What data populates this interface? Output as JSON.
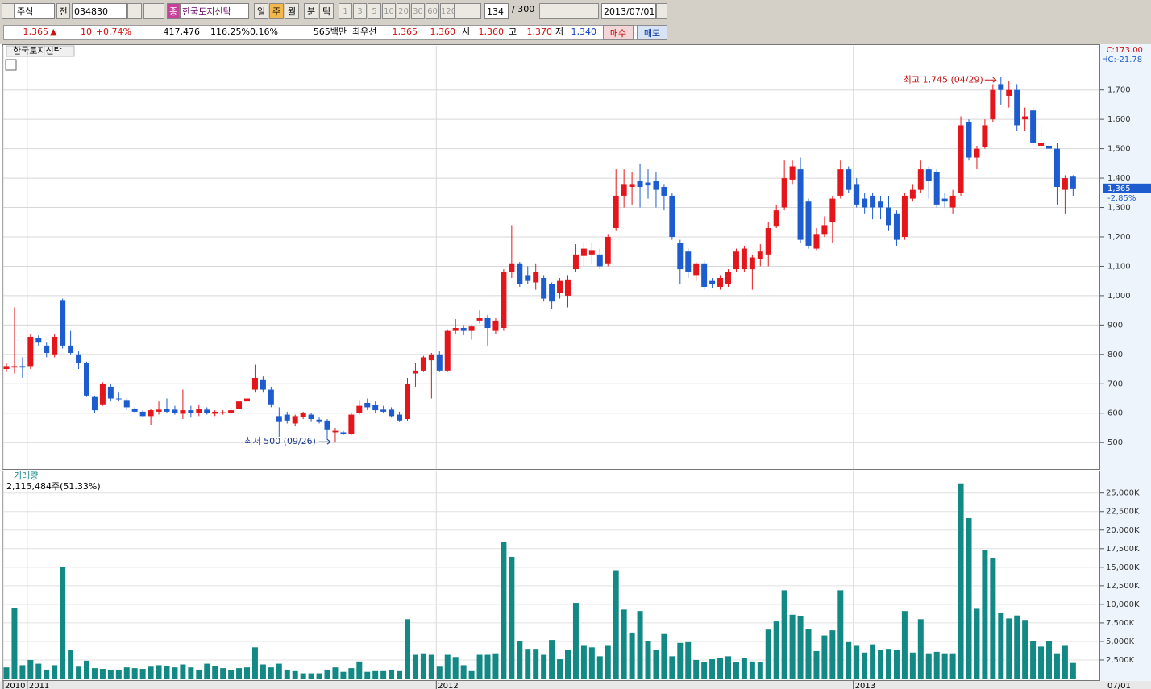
{
  "toolbar": {
    "market": "주식",
    "prev": "전",
    "code": "034830",
    "badge": "종",
    "name": "한국토지신탁",
    "periods": [
      "일",
      "주",
      "월",
      "분",
      "틱"
    ],
    "intervals": [
      "1",
      "3",
      "5",
      "10",
      "20",
      "30",
      "60",
      "120"
    ],
    "count": "134",
    "max": "/ 300",
    "date": "2013/07/01"
  },
  "quote": {
    "price": "1,365",
    "arrow": "▲",
    "change": "10",
    "change_pct": "+0.74%",
    "volume": "417,476",
    "volume_ratio": "116.25%",
    "turnover_rate": "0.16%",
    "amount": "565백만",
    "best_label": "최우선",
    "ask": "1,365",
    "bid": "1,360",
    "open_label": "시",
    "open": "1,360",
    "high_label": "고",
    "high": "1,370",
    "low_label": "저",
    "low": "1,340",
    "buy": "매수",
    "sell": "매도"
  },
  "chart_data": [
    {
      "type": "candlestick",
      "title": "한국토지신탁",
      "lc": "LC:173.00",
      "hc": "HC:-21.78",
      "high_annotation": "최고 1,745 (04/29)",
      "low_annotation": "최저 500 (09/26)",
      "last_label": {
        "value": 1365,
        "label": "1,365"
      },
      "last_change": "-2.85%",
      "up_color": "#e4161c",
      "down_color": "#1d5ccf",
      "grid": true,
      "ylim": [
        410,
        1850
      ],
      "yticks": [
        500,
        600,
        700,
        800,
        900,
        {
          "value": 1000,
          "label": "1,000"
        },
        {
          "value": 1100,
          "label": "1,100"
        },
        {
          "value": 1200,
          "label": "1,200"
        },
        {
          "value": 1300,
          "label": "1,300"
        },
        {
          "value": 1400,
          "label": "1,400"
        },
        {
          "value": 1500,
          "label": "1,500"
        },
        {
          "value": 1600,
          "label": "1,600"
        },
        {
          "value": 1700,
          "label": "1,700"
        }
      ],
      "xticks": [
        {
          "value": 0,
          "label": "2010"
        },
        {
          "value": 3,
          "label": "2011"
        },
        {
          "value": 54,
          "label": "2012"
        },
        {
          "value": 106,
          "label": "2013"
        }
      ],
      "x_end_label": "07/01",
      "open": [
        750,
        755,
        760,
        760,
        855,
        830,
        800,
        985,
        830,
        800,
        770,
        655,
        630,
        690,
        650,
        645,
        615,
        605,
        590,
        605,
        615,
        612,
        598,
        610,
        600,
        612,
        598,
        602,
        600,
        615,
        640,
        680,
        715,
        680,
        590,
        595,
        565,
        588,
        595,
        578,
        575,
        535,
        535,
        530,
        600,
        635,
        628,
        612,
        612,
        595,
        580,
        735,
        745,
        780,
        800,
        745,
        880,
        890,
        880,
        915,
        925,
        880,
        890,
        1080,
        1110,
        1070,
        1045,
        1060,
        1040,
        1010,
        1000,
        1090,
        1135,
        1140,
        1140,
        1110,
        1230,
        1340,
        1370,
        1390,
        1385,
        1390,
        1370,
        1340,
        1180,
        1150,
        1070,
        1110,
        1050,
        1030,
        1040,
        1090,
        1090,
        1090,
        1125,
        1140,
        1235,
        1300,
        1395,
        1430,
        1320,
        1160,
        1210,
        1250,
        1340,
        1430,
        1380,
        1330,
        1340,
        1320,
        1300,
        1280,
        1200,
        1330,
        1360,
        1430,
        1420,
        1330,
        1300,
        1350,
        1590,
        1470,
        1505,
        1600,
        1720,
        1680,
        1700,
        1600,
        1630,
        1510,
        1510,
        1500,
        1360,
        1405
      ],
      "high": [
        770,
        960,
        790,
        870,
        865,
        840,
        870,
        990,
        880,
        810,
        775,
        660,
        705,
        700,
        670,
        650,
        620,
        610,
        615,
        640,
        650,
        625,
        680,
        625,
        630,
        620,
        610,
        610,
        620,
        645,
        660,
        765,
        725,
        690,
        620,
        605,
        595,
        605,
        600,
        585,
        580,
        550,
        540,
        600,
        645,
        650,
        640,
        625,
        620,
        605,
        720,
        770,
        795,
        805,
        810,
        885,
        920,
        900,
        900,
        950,
        935,
        925,
        1090,
        1240,
        1115,
        1100,
        1110,
        1070,
        1045,
        1060,
        1070,
        1175,
        1180,
        1180,
        1160,
        1210,
        1430,
        1430,
        1420,
        1450,
        1430,
        1420,
        1380,
        1350,
        1190,
        1160,
        1115,
        1120,
        1060,
        1070,
        1090,
        1160,
        1170,
        1140,
        1175,
        1250,
        1310,
        1460,
        1460,
        1470,
        1330,
        1230,
        1270,
        1340,
        1460,
        1440,
        1400,
        1350,
        1350,
        1340,
        1340,
        1290,
        1350,
        1380,
        1460,
        1440,
        1430,
        1350,
        1360,
        1610,
        1600,
        1510,
        1600,
        1720,
        1745,
        1730,
        1720,
        1640,
        1640,
        1580,
        1560,
        1520,
        1410,
        1410
      ],
      "low": [
        740,
        735,
        720,
        750,
        830,
        790,
        790,
        820,
        800,
        750,
        655,
        600,
        625,
        640,
        640,
        610,
        600,
        585,
        560,
        595,
        600,
        595,
        580,
        585,
        590,
        595,
        590,
        595,
        595,
        605,
        630,
        670,
        670,
        620,
        520,
        565,
        555,
        580,
        570,
        565,
        510,
        500,
        525,
        525,
        595,
        610,
        600,
        600,
        585,
        570,
        575,
        690,
        740,
        650,
        740,
        740,
        870,
        865,
        850,
        905,
        830,
        870,
        880,
        1060,
        1030,
        1040,
        1020,
        980,
        955,
        990,
        960,
        1080,
        1100,
        1110,
        1090,
        1100,
        1220,
        1300,
        1310,
        1300,
        1330,
        1300,
        1290,
        1190,
        1040,
        1060,
        1050,
        1020,
        1025,
        1020,
        1030,
        1080,
        1080,
        1020,
        1100,
        1100,
        1230,
        1290,
        1380,
        1180,
        1160,
        1155,
        1200,
        1180,
        1330,
        1350,
        1300,
        1280,
        1260,
        1260,
        1220,
        1170,
        1190,
        1320,
        1350,
        1330,
        1300,
        1300,
        1280,
        1340,
        1460,
        1430,
        1500,
        1590,
        1650,
        1640,
        1560,
        1560,
        1510,
        1490,
        1480,
        1310,
        1280,
        1340
      ],
      "close": [
        760,
        760,
        755,
        860,
        840,
        805,
        860,
        830,
        805,
        770,
        660,
        610,
        700,
        650,
        648,
        620,
        605,
        590,
        610,
        612,
        605,
        600,
        610,
        600,
        615,
        600,
        605,
        603,
        610,
        640,
        650,
        720,
        680,
        630,
        570,
        575,
        590,
        600,
        580,
        570,
        545,
        540,
        530,
        595,
        625,
        620,
        610,
        605,
        590,
        575,
        700,
        745,
        790,
        800,
        745,
        880,
        890,
        880,
        895,
        925,
        890,
        915,
        1080,
        1110,
        1040,
        1050,
        1080,
        990,
        980,
        1050,
        1055,
        1140,
        1160,
        1155,
        1100,
        1200,
        1340,
        1380,
        1380,
        1370,
        1375,
        1360,
        1340,
        1200,
        1090,
        1080,
        1110,
        1030,
        1040,
        1060,
        1080,
        1150,
        1160,
        1130,
        1150,
        1230,
        1290,
        1400,
        1440,
        1190,
        1170,
        1210,
        1240,
        1330,
        1430,
        1360,
        1310,
        1300,
        1300,
        1300,
        1240,
        1190,
        1340,
        1360,
        1430,
        1390,
        1310,
        1320,
        1340,
        1580,
        1470,
        1500,
        1580,
        1700,
        1700,
        1700,
        1580,
        1610,
        1520,
        1520,
        1500,
        1370,
        1400,
        1365
      ]
    },
    {
      "type": "bar",
      "title": "거래량",
      "subtitle": "2,115,484주(51.33%)",
      "color": "#138985",
      "grid": true,
      "ylim": [
        0,
        27900
      ],
      "yticks": [
        {
          "value": 2500,
          "label": "2,500K"
        },
        {
          "value": 5000,
          "label": "5,000K"
        },
        {
          "value": 7500,
          "label": "7,500K"
        },
        {
          "value": 10000,
          "label": "10,000K"
        },
        {
          "value": 12500,
          "label": "12,500K"
        },
        {
          "value": 15000,
          "label": "15,000K"
        },
        {
          "value": 17500,
          "label": "17,500K"
        },
        {
          "value": 20000,
          "label": "20,000K"
        },
        {
          "value": 22500,
          "label": "22,500K"
        },
        {
          "value": 25000,
          "label": "25,000K"
        }
      ],
      "values": [
        1500,
        9500,
        1800,
        2500,
        2000,
        1200,
        1800,
        15000,
        3800,
        1600,
        2400,
        1400,
        1300,
        1200,
        1100,
        1500,
        1400,
        1300,
        1600,
        1800,
        1700,
        1500,
        1900,
        1500,
        1200,
        2000,
        1700,
        1400,
        1100,
        1400,
        1500,
        4200,
        1900,
        1500,
        2000,
        1200,
        1000,
        700,
        700,
        700,
        1200,
        1500,
        900,
        1400,
        2300,
        900,
        1000,
        1000,
        1200,
        1000,
        8000,
        3200,
        3400,
        3200,
        1600,
        3200,
        2900,
        1800,
        1000,
        3200,
        3200,
        3400,
        18400,
        16400,
        5000,
        4000,
        4000,
        3200,
        5200,
        2600,
        3800,
        10200,
        4400,
        4200,
        3000,
        4400,
        14600,
        9300,
        6200,
        9100,
        5000,
        3800,
        6000,
        3000,
        4800,
        4900,
        2500,
        2200,
        2600,
        2800,
        3000,
        2200,
        2800,
        2300,
        2200,
        6600,
        7700,
        11900,
        8600,
        8400,
        6700,
        3700,
        5800,
        6500,
        11900,
        4900,
        4400,
        3500,
        4600,
        3800,
        4000,
        3800,
        9100,
        3500,
        8000,
        3400,
        3600,
        3400,
        3400,
        26300,
        21600,
        9400,
        17300,
        16200,
        8800,
        8100,
        8500,
        7900,
        5000,
        4300,
        5000,
        3400,
        4400,
        2100
      ]
    }
  ]
}
